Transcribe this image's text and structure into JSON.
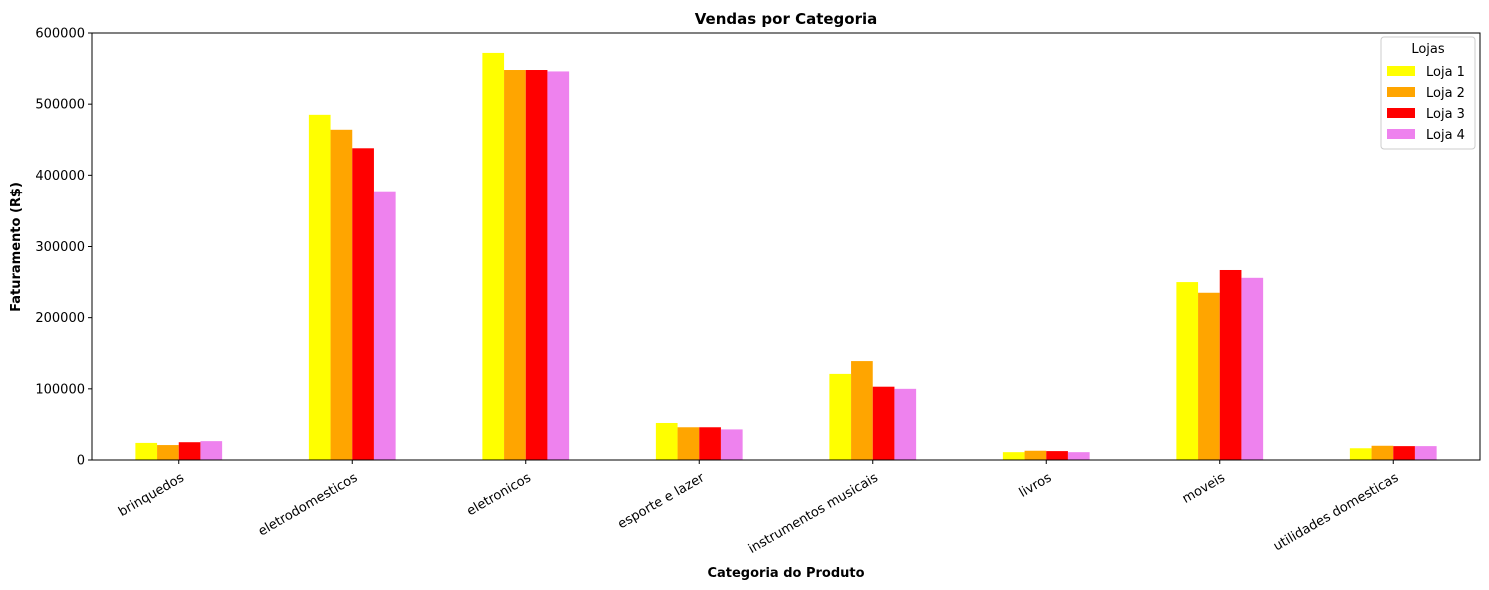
{
  "chart_data": {
    "type": "bar",
    "title": "Vendas por Categoria",
    "xlabel": "Categoria do Produto",
    "ylabel": "Faturamento (R$)",
    "ylim": [
      0,
      600000
    ],
    "yticks": [
      0,
      100000,
      200000,
      300000,
      400000,
      500000,
      600000
    ],
    "ytick_labels": [
      "0",
      "100000",
      "200000",
      "300000",
      "400000",
      "500000",
      "600000"
    ],
    "categories": [
      "brinquedos",
      "eletrodomesticos",
      "eletronicos",
      "esporte e lazer",
      "instrumentos musicais",
      "livros",
      "moveis",
      "utilidades domesticas"
    ],
    "series": [
      {
        "name": "Loja 1",
        "color": "#ffff00",
        "values": [
          24000,
          485000,
          572000,
          52000,
          121000,
          11000,
          250000,
          16500
        ]
      },
      {
        "name": "Loja 2",
        "color": "#ffa500",
        "values": [
          21000,
          464000,
          548000,
          46000,
          139000,
          13000,
          235000,
          20000
        ]
      },
      {
        "name": "Loja 3",
        "color": "#ff0000",
        "values": [
          25000,
          438000,
          548000,
          46000,
          103000,
          12500,
          267000,
          19500
        ]
      },
      {
        "name": "Loja 4",
        "color": "#ee82ee",
        "values": [
          26500,
          377000,
          546000,
          43000,
          100000,
          11000,
          256000,
          19500
        ]
      }
    ],
    "legend": {
      "title": "Lojas",
      "position": "top-right"
    },
    "grid": false
  }
}
